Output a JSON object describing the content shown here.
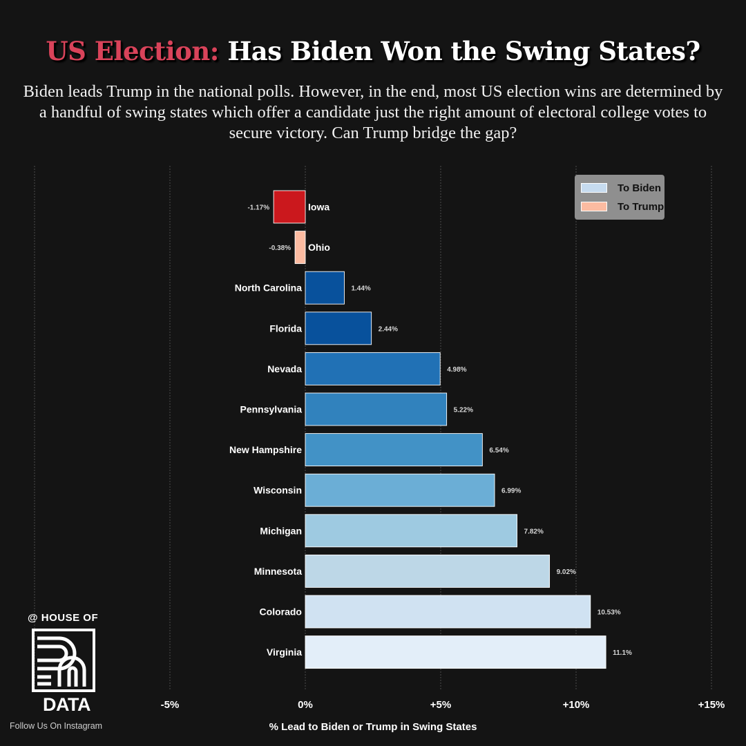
{
  "header": {
    "title_highlight": "US Election:",
    "title_rest": "Has Biden Won the Swing States?",
    "subtitle": "Biden leads Trump in the national polls. However, in the end, most US election wins are determined by a handful of swing states which offer a candidate just the right amount of electoral college votes to secure victory. Can Trump bridge the gap?"
  },
  "colors": {
    "background": "#141414",
    "title_highlight": "#d9435a",
    "trump_strong": "#cb181d",
    "trump_light": "#fcbba1",
    "biden_dark": "#08519c"
  },
  "chart_data": {
    "type": "bar",
    "orientation": "horizontal",
    "categories": [
      "Iowa",
      "Ohio",
      "North Carolina",
      "Florida",
      "Nevada",
      "Pennsylvania",
      "New Hampshire",
      "Wisconsin",
      "Michigan",
      "Minnesota",
      "Colorado",
      "Virginia"
    ],
    "values": [
      -1.17,
      -0.38,
      1.44,
      2.44,
      4.98,
      5.22,
      6.54,
      6.99,
      7.82,
      9.02,
      10.53,
      11.1
    ],
    "value_labels": [
      "-1.17%",
      "-0.38%",
      "1.44%",
      "2.44%",
      "4.98%",
      "5.22%",
      "6.54%",
      "6.99%",
      "7.82%",
      "9.02%",
      "10.53%",
      "11.1%"
    ],
    "bar_colors": [
      "#cb181d",
      "#fcbba1",
      "#08519c",
      "#08519c",
      "#2171b5",
      "#3182bd",
      "#4292c6",
      "#6baed6",
      "#9ecae1",
      "#bdd7e7",
      "#d0e2f2",
      "#e3eef9"
    ],
    "xlim": [
      -10,
      15
    ],
    "xticks": [
      -5,
      0,
      5,
      10,
      15
    ],
    "xtick_labels": [
      "-5%",
      "0%",
      "+5%",
      "+10%",
      "+15%"
    ],
    "xlabel": "% Lead to Biden or Trump in Swing States",
    "ylabel": "",
    "grid": "vertical dashed",
    "legend": {
      "placement": "top-right",
      "entries": [
        {
          "label": "To Biden",
          "color": "#c6dbef"
        },
        {
          "label": "To Trump",
          "color": "#fcbba1"
        }
      ]
    }
  },
  "branding": {
    "top": "@ HOUSE OF",
    "bottom": "DATA",
    "follow": "Follow Us On Instagram"
  }
}
